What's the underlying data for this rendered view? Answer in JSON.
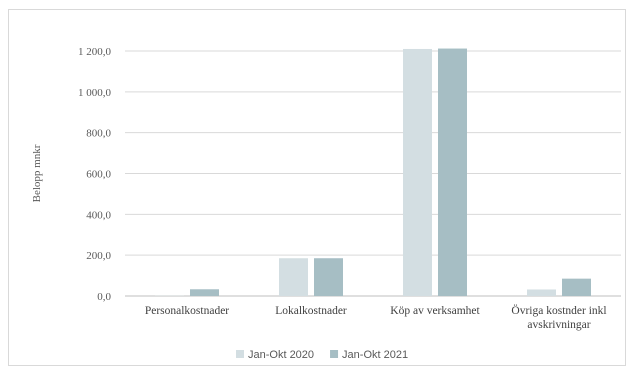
{
  "chart_data": {
    "type": "bar",
    "title": "",
    "xlabel": "",
    "ylabel": "Belopp mnkr",
    "ylim": [
      0,
      1200
    ],
    "yticks": [
      0,
      200,
      400,
      600,
      800,
      1000,
      1200
    ],
    "ytick_labels": [
      "0,0",
      "200,0",
      "400,0",
      "600,0",
      "800,0",
      "1 000,0",
      "1 200,0"
    ],
    "grid": true,
    "legend_position": "bottom",
    "categories": [
      [
        "Personalkostnader"
      ],
      [
        "Lokalkostnader"
      ],
      [
        "Köp av verksamhet"
      ],
      [
        "Övriga kostnder inkl",
        "avskrivningar"
      ]
    ],
    "series": [
      {
        "name": "Jan-Okt 2020",
        "color": "#d3dee2",
        "values": [
          1,
          185,
          1210,
          32
        ]
      },
      {
        "name": "Jan-Okt 2021",
        "color": "#a6bec4",
        "values": [
          33,
          185,
          1212,
          85
        ]
      }
    ]
  }
}
